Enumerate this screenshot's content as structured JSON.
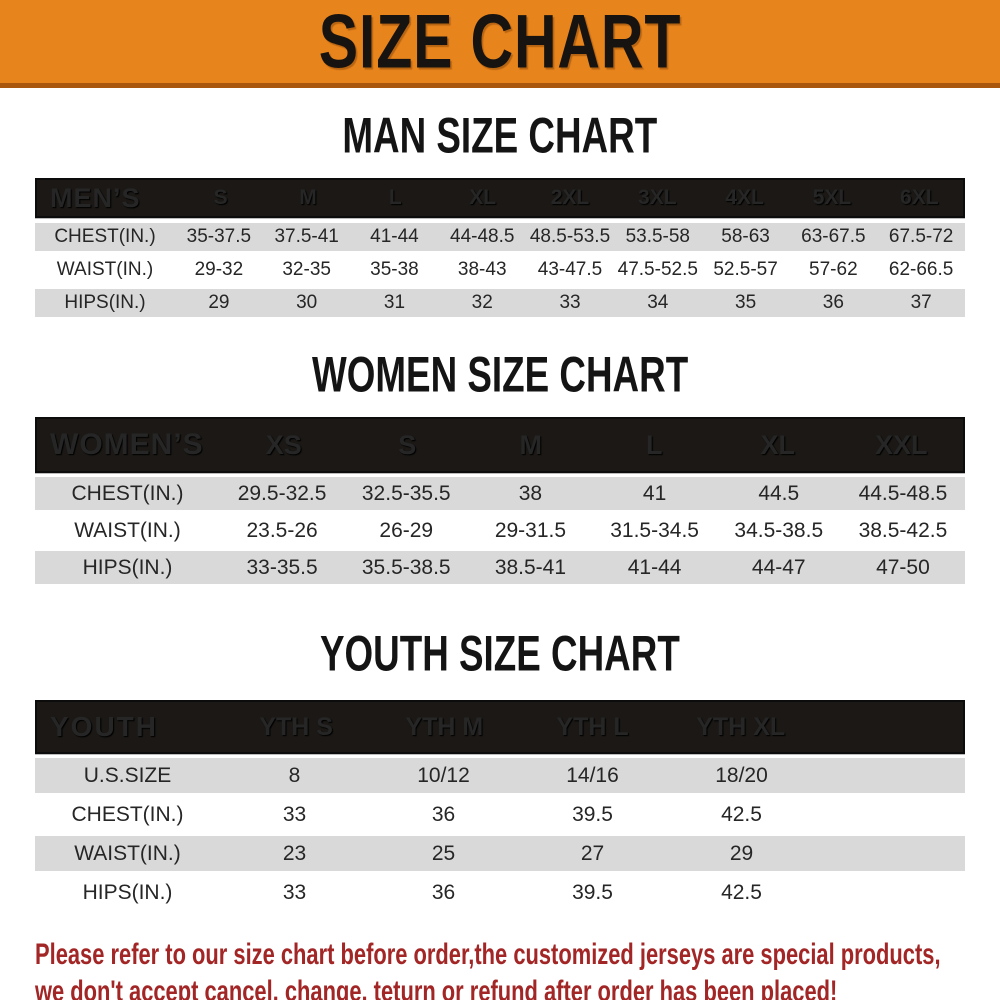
{
  "banner": {
    "title": "SIZE CHART"
  },
  "colors": {
    "banner_bg": "#E8841C",
    "banner_border": "#A9570C",
    "table_header_bg": "#1B1815",
    "stripe_row_bg": "#D9D9D9",
    "disclaimer_text": "#A32626"
  },
  "men": {
    "heading": "MAN SIZE CHART",
    "header_label": "MEN’S",
    "sizes": [
      "S",
      "M",
      "L",
      "XL",
      "2XL",
      "3XL",
      "4XL",
      "5XL",
      "6XL"
    ],
    "rows": [
      {
        "label": "CHEST(IN.)",
        "values": [
          "35-37.5",
          "37.5-41",
          "41-44",
          "44-48.5",
          "48.5-53.5",
          "53.5-58",
          "58-63",
          "63-67.5",
          "67.5-72"
        ]
      },
      {
        "label": "WAIST(IN.)",
        "values": [
          "29-32",
          "32-35",
          "35-38",
          "38-43",
          "43-47.5",
          "47.5-52.5",
          "52.5-57",
          "57-62",
          "62-66.5"
        ]
      },
      {
        "label": "HIPS(IN.)",
        "values": [
          "29",
          "30",
          "31",
          "32",
          "33",
          "34",
          "35",
          "36",
          "37"
        ]
      }
    ]
  },
  "women": {
    "heading": "WOMEN SIZE CHART",
    "header_label": "WOMEN’S",
    "sizes": [
      "XS",
      "S",
      "M",
      "L",
      "XL",
      "XXL"
    ],
    "rows": [
      {
        "label": "CHEST(IN.)",
        "values": [
          "29.5-32.5",
          "32.5-35.5",
          "38",
          "41",
          "44.5",
          "44.5-48.5"
        ]
      },
      {
        "label": "WAIST(IN.)",
        "values": [
          "23.5-26",
          "26-29",
          "29-31.5",
          "31.5-34.5",
          "34.5-38.5",
          "38.5-42.5"
        ]
      },
      {
        "label": "HIPS(IN.)",
        "values": [
          "33-35.5",
          "35.5-38.5",
          "38.5-41",
          "41-44",
          "44-47",
          "47-50"
        ]
      }
    ]
  },
  "youth": {
    "heading": "YOUTH SIZE CHART",
    "header_label": "YOUTH",
    "sizes": [
      "YTH S",
      "YTH M",
      "YTH L",
      "YTH XL"
    ],
    "rows": [
      {
        "label": "U.S.SIZE",
        "values": [
          "8",
          "10/12",
          "14/16",
          "18/20"
        ]
      },
      {
        "label": "CHEST(IN.)",
        "values": [
          "33",
          "36",
          "39.5",
          "42.5"
        ]
      },
      {
        "label": "WAIST(IN.)",
        "values": [
          "23",
          "25",
          "27",
          "29"
        ]
      },
      {
        "label": "HIPS(IN.)",
        "values": [
          "33",
          "36",
          "39.5",
          "42.5"
        ]
      }
    ]
  },
  "disclaimer": {
    "line1": "Please refer to our size chart before order,the customized jerseys are special products,",
    "line2": "we don't accept cancel, change, teturn or refund after order has been placed!"
  }
}
